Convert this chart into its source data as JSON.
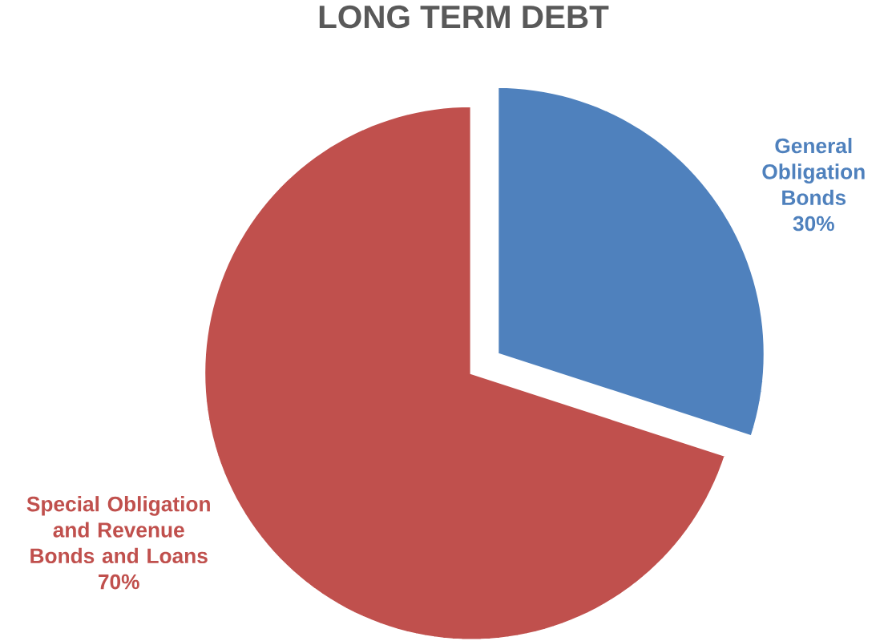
{
  "chart_data": {
    "type": "pie",
    "title": "LONG TERM DEBT",
    "categories": [
      "General Obligation Bonds",
      "Special Obligation and Revenue Bonds and Loans"
    ],
    "values": [
      30,
      70
    ],
    "colors": [
      "#4f81bd",
      "#c0504d"
    ],
    "value_labels": [
      "30%",
      "70%"
    ]
  }
}
